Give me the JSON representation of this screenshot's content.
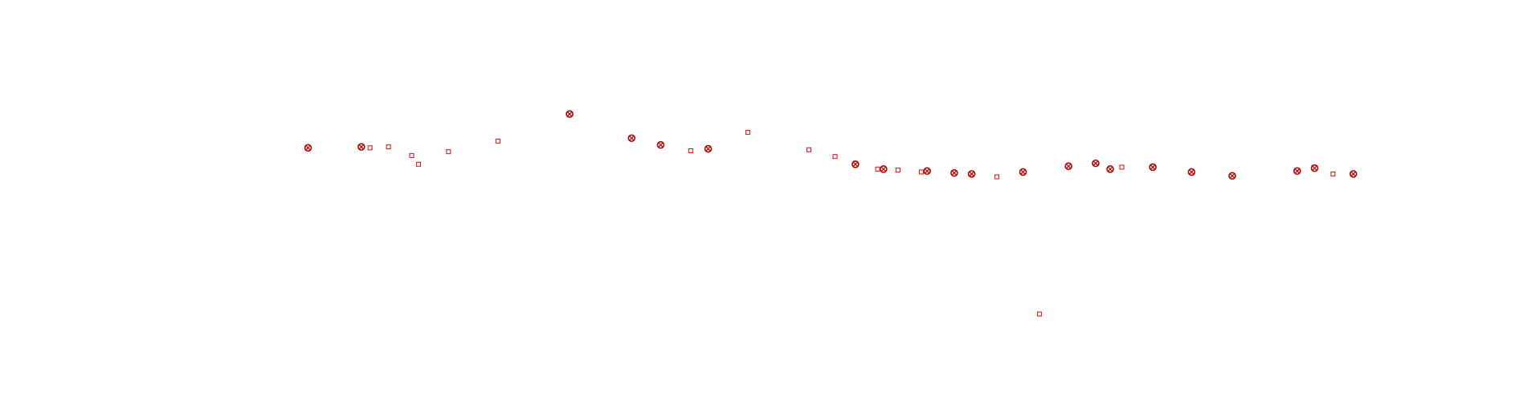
{
  "chart_data": {
    "type": "scatter",
    "xlim": [
      0,
      1568
    ],
    "ylim": [
      415,
      0
    ],
    "series": [
      {
        "color": "#b00000",
        "marker": "circle-x",
        "x": [
          318,
          373,
          588,
          652,
          682,
          731,
          883,
          912,
          957,
          985,
          1003,
          1056,
          1103,
          1131,
          1146,
          1190,
          1230,
          1272,
          1339,
          1357,
          1397
        ],
        "y": [
          153,
          152,
          118,
          143,
          150,
          154,
          170,
          175,
          177,
          179,
          180,
          178,
          172,
          169,
          175,
          173,
          178,
          182,
          177,
          174,
          180
        ]
      },
      {
        "color": "#d42020",
        "marker": "square",
        "x": [
          382,
          401,
          425,
          432,
          463,
          514,
          713,
          772,
          835,
          862,
          906,
          927,
          951,
          1029,
          1073,
          1158,
          1376
        ],
        "y": [
          153,
          152,
          161,
          170,
          157,
          146,
          156,
          137,
          155,
          162,
          175,
          176,
          178,
          183,
          325,
          173,
          180
        ]
      }
    ]
  }
}
